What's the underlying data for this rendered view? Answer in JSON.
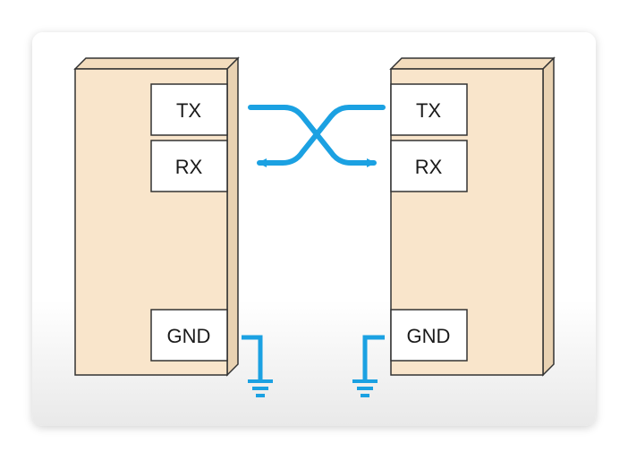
{
  "diagram": {
    "left_device": {
      "pins": [
        "TX",
        "RX",
        "GND"
      ]
    },
    "right_device": {
      "pins": [
        "TX",
        "RX",
        "GND"
      ]
    }
  },
  "colors": {
    "device_fill": "#f9e5cb",
    "device_side": "#eed7b8",
    "device_stroke": "#333333",
    "wire": "#1ba1e2",
    "pin_box_fill": "#ffffff"
  },
  "icons": [
    "arrow-left-icon",
    "arrow-right-icon",
    "ground-icon"
  ]
}
